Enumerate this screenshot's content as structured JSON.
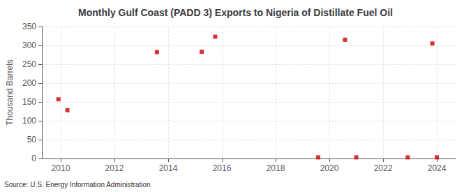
{
  "chart_data": {
    "type": "scatter",
    "title": "Monthly Gulf Coast (PADD 3) Exports to Nigeria of Distillate Fuel Oil",
    "ylabel": "Thousand Barrels",
    "annotation": "Source: U.S. Energy Information Administration",
    "x": [
      2009.917,
      2010.25,
      2013.583,
      2015.25,
      2015.75,
      2019.583,
      2020.583,
      2021.0,
      2022.917,
      2023.833,
      2024.0
    ],
    "values": [
      157,
      128,
      282,
      283,
      323,
      3,
      315,
      3,
      3,
      305,
      3
    ],
    "color": "#cc0000",
    "marker": "square",
    "xlim": [
      2009.3,
      2024.7
    ],
    "ylim": [
      0,
      350
    ],
    "xticks": [
      2010,
      2012,
      2014,
      2016,
      2018,
      2020,
      2022,
      2024
    ],
    "yticks": [
      0,
      50,
      100,
      150,
      200,
      250,
      300,
      350
    ],
    "grid": true
  }
}
